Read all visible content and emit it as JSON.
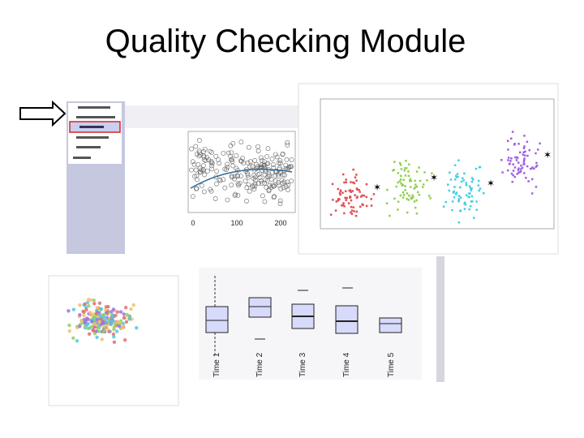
{
  "title": "Quality Checking Module",
  "scatter_plot": {
    "xticks": [
      "0",
      "100",
      "200"
    ]
  },
  "box_plot": {
    "categories": [
      "Time 1",
      "Time 2",
      "Time 3",
      "Time 4",
      "Time 5"
    ]
  }
}
